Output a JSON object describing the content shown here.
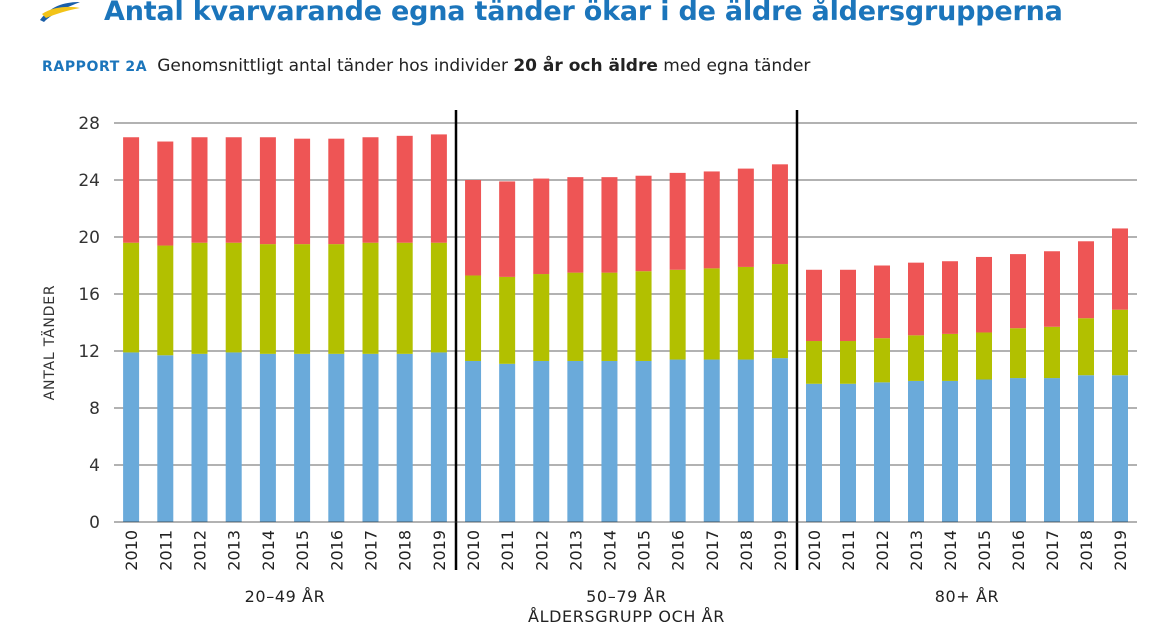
{
  "header": {
    "title": "Antal kvarvarande egna tänder ökar i de äldre åldersgrupperna",
    "report_tag": "RAPPORT 2A",
    "subtitle_pre": "Genomsnittligt antal tänder hos individer ",
    "subtitle_bold": "20 år och äldre",
    "subtitle_post": " med egna tänder"
  },
  "colors": {
    "title": "#1b75bb",
    "report_tag": "#1b75bb",
    "logo_blue": "#1b5fa8",
    "logo_yellow": "#f2c318",
    "series": [
      "#6aaada",
      "#b2c000",
      "#ee5555"
    ]
  },
  "chart_data": {
    "type": "bar",
    "stacked": true,
    "ylabel": "ANTAL TÄNDER",
    "xlabel": "ÅLDERSGRUPP OCH ÅR",
    "ylim": [
      0,
      28
    ],
    "yticks": [
      0,
      4,
      8,
      12,
      16,
      20,
      24,
      28
    ],
    "grid": true,
    "legend": "none",
    "groups": [
      {
        "label": "20–49 ÅR",
        "categories": [
          "2010",
          "2011",
          "2012",
          "2013",
          "2014",
          "2015",
          "2016",
          "2017",
          "2018",
          "2019"
        ],
        "series": [
          {
            "values": [
              11.9,
              11.7,
              11.8,
              11.9,
              11.8,
              11.8,
              11.8,
              11.8,
              11.8,
              11.9
            ]
          },
          {
            "values": [
              7.7,
              7.7,
              7.8,
              7.7,
              7.7,
              7.7,
              7.7,
              7.8,
              7.8,
              7.7
            ]
          },
          {
            "values": [
              7.4,
              7.3,
              7.4,
              7.4,
              7.5,
              7.4,
              7.4,
              7.4,
              7.5,
              7.6
            ]
          }
        ]
      },
      {
        "label": "50–79 ÅR",
        "categories": [
          "2010",
          "2011",
          "2012",
          "2013",
          "2014",
          "2015",
          "2016",
          "2017",
          "2018",
          "2019"
        ],
        "series": [
          {
            "values": [
              11.3,
              11.1,
              11.3,
              11.3,
              11.3,
              11.3,
              11.4,
              11.4,
              11.4,
              11.5
            ]
          },
          {
            "values": [
              6.0,
              6.1,
              6.1,
              6.2,
              6.2,
              6.3,
              6.3,
              6.4,
              6.5,
              6.6
            ]
          },
          {
            "values": [
              6.7,
              6.7,
              6.7,
              6.7,
              6.7,
              6.7,
              6.8,
              6.8,
              6.9,
              7.0
            ]
          }
        ]
      },
      {
        "label": "80+ ÅR",
        "categories": [
          "2010",
          "2011",
          "2012",
          "2013",
          "2014",
          "2015",
          "2016",
          "2017",
          "2018",
          "2019"
        ],
        "series": [
          {
            "values": [
              9.7,
              9.7,
              9.8,
              9.9,
              9.9,
              10.0,
              10.1,
              10.1,
              10.3,
              10.3
            ]
          },
          {
            "values": [
              3.0,
              3.0,
              3.1,
              3.2,
              3.3,
              3.3,
              3.5,
              3.6,
              4.0,
              4.6
            ]
          },
          {
            "values": [
              5.0,
              5.0,
              5.1,
              5.1,
              5.1,
              5.3,
              5.2,
              5.3,
              5.4,
              5.7
            ]
          }
        ]
      }
    ]
  }
}
